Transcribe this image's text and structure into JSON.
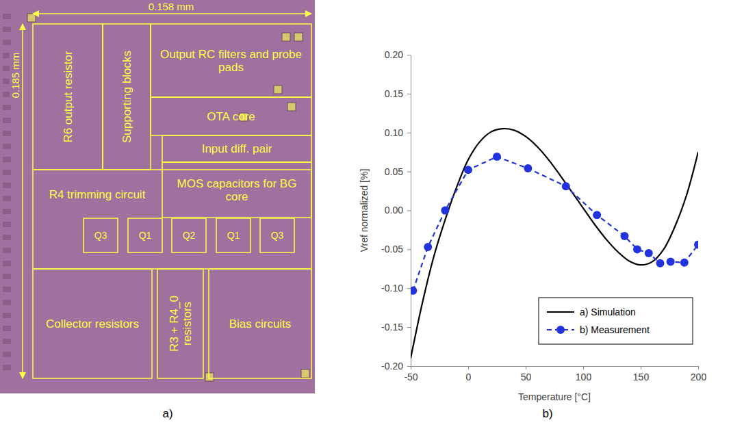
{
  "panel_labels": [
    "a)",
    "b)"
  ],
  "die_photo": {
    "width_label": "0.158 mm",
    "height_label": "0.185 mm",
    "blocks": [
      "R6 output resistor",
      "Supporting blocks",
      "Output RC filters and probe pads",
      "OTA core",
      "Input diff. pair",
      "MOS capacitors for BG core",
      "R4 trimming circuit",
      "Q3",
      "Q1",
      "Q2",
      "Q1",
      "Q3",
      "Collector resistors",
      "R3 + R4_0 resistors",
      "Bias circuits"
    ]
  },
  "chart_data": {
    "type": "line",
    "x_label": "Temperature [°C]",
    "y_label": "Vref normalized [%]",
    "xlim": [
      -50,
      200
    ],
    "xticks": [
      -50,
      0,
      50,
      100,
      150,
      200
    ],
    "ylim": [
      -0.2,
      0.2
    ],
    "yticks": [
      {
        "value": -0.2,
        "label": "-0.20"
      },
      -0.15,
      {
        "value": -0.1,
        "label": "-0.10"
      },
      -0.05,
      {
        "value": 0,
        "label": "0.00"
      },
      0.05,
      {
        "value": 0.1,
        "label": "0.10"
      },
      0.15,
      {
        "value": 0.2,
        "label": "0.20"
      }
    ],
    "grid": false,
    "legend": "lower right",
    "series": [
      {
        "name": "a) Simulation",
        "color": "#000000",
        "line_style": "solid",
        "marker": "none",
        "x": [
          -50,
          -40,
          -30,
          -20,
          -10,
          0,
          10,
          20,
          30,
          40,
          50,
          60,
          70,
          80,
          90,
          100,
          110,
          120,
          130,
          140,
          150,
          160,
          170,
          180,
          190,
          200
        ],
        "values": [
          -0.19,
          -0.12,
          -0.06,
          -0.012,
          0.03,
          0.065,
          0.088,
          0.101,
          0.105,
          0.103,
          0.095,
          0.082,
          0.065,
          0.045,
          0.024,
          0.003,
          -0.018,
          -0.037,
          -0.053,
          -0.065,
          -0.07,
          -0.066,
          -0.05,
          -0.02,
          0.02,
          0.075
        ]
      },
      {
        "name": "b) Measurement",
        "color": "#2233dd",
        "line_style": "dashed",
        "marker": "circle",
        "x": [
          -48,
          -35,
          -20,
          0,
          25,
          52,
          85,
          112,
          136,
          147,
          157,
          167,
          176,
          188,
          200
        ],
        "values": [
          -0.103,
          -0.047,
          0.0,
          0.052,
          0.069,
          0.054,
          0.031,
          -0.006,
          -0.033,
          -0.05,
          -0.055,
          -0.068,
          -0.066,
          -0.067,
          -0.044
        ]
      }
    ]
  }
}
